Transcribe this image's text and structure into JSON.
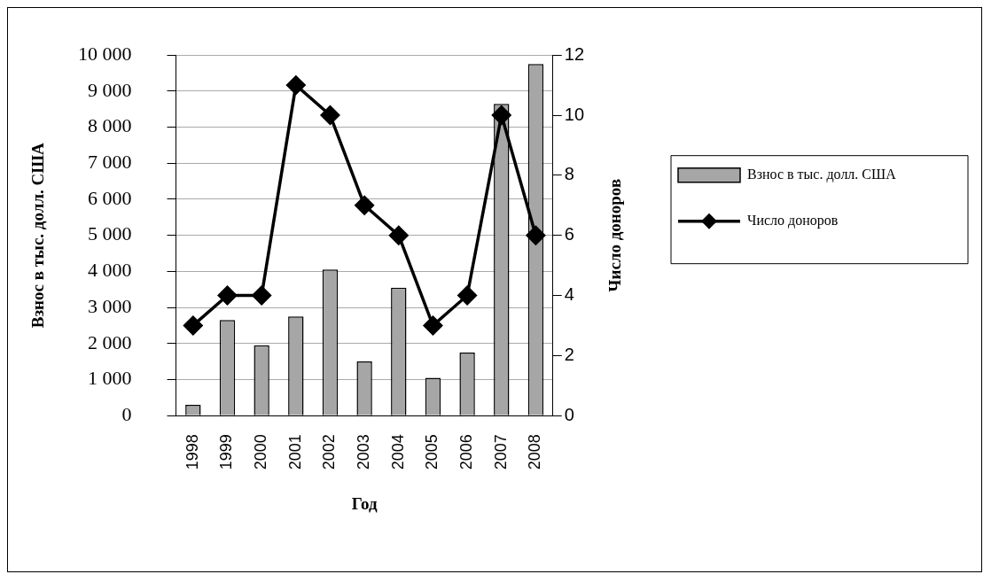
{
  "chart_data": {
    "type": "bar",
    "xlabel": "Год",
    "ylabel": "Взнос в тыс. долл. США",
    "y2label": "Число доноров",
    "categories": [
      "1998",
      "1999",
      "2000",
      "2001",
      "2002",
      "2003",
      "2004",
      "2005",
      "2006",
      "2007",
      "2008"
    ],
    "series": [
      {
        "name": "Взнос в тыс. долл. США",
        "color": "#a6a6a6",
        "values": [
          300,
          2650,
          1950,
          2750,
          4050,
          1500,
          3550,
          1050,
          1750,
          8650,
          9750
        ]
      },
      {
        "name": "Число доноров",
        "type": "line",
        "axis": "y2",
        "color": "#000000",
        "marker": "diamond",
        "values": [
          3,
          4,
          4,
          11,
          10,
          7,
          6,
          3,
          4,
          10,
          6
        ]
      }
    ],
    "ylim": [
      0,
      10000
    ],
    "yticks": [
      {
        "value": 0,
        "label": "0"
      },
      {
        "value": 1000,
        "label": "1 000"
      },
      {
        "value": 2000,
        "label": "2 000"
      },
      {
        "value": 3000,
        "label": "3 000"
      },
      {
        "value": 4000,
        "label": "4 000"
      },
      {
        "value": 5000,
        "label": "5 000"
      },
      {
        "value": 6000,
        "label": "6 000"
      },
      {
        "value": 7000,
        "label": "7 000"
      },
      {
        "value": 8000,
        "label": "8 000"
      },
      {
        "value": 9000,
        "label": "9 000"
      },
      {
        "value": 10000,
        "label": "10 000"
      }
    ],
    "y2lim": [
      0,
      12
    ],
    "y2ticks": [
      0,
      2,
      4,
      6,
      8,
      10,
      12
    ],
    "grid": "y",
    "legend": "right"
  }
}
